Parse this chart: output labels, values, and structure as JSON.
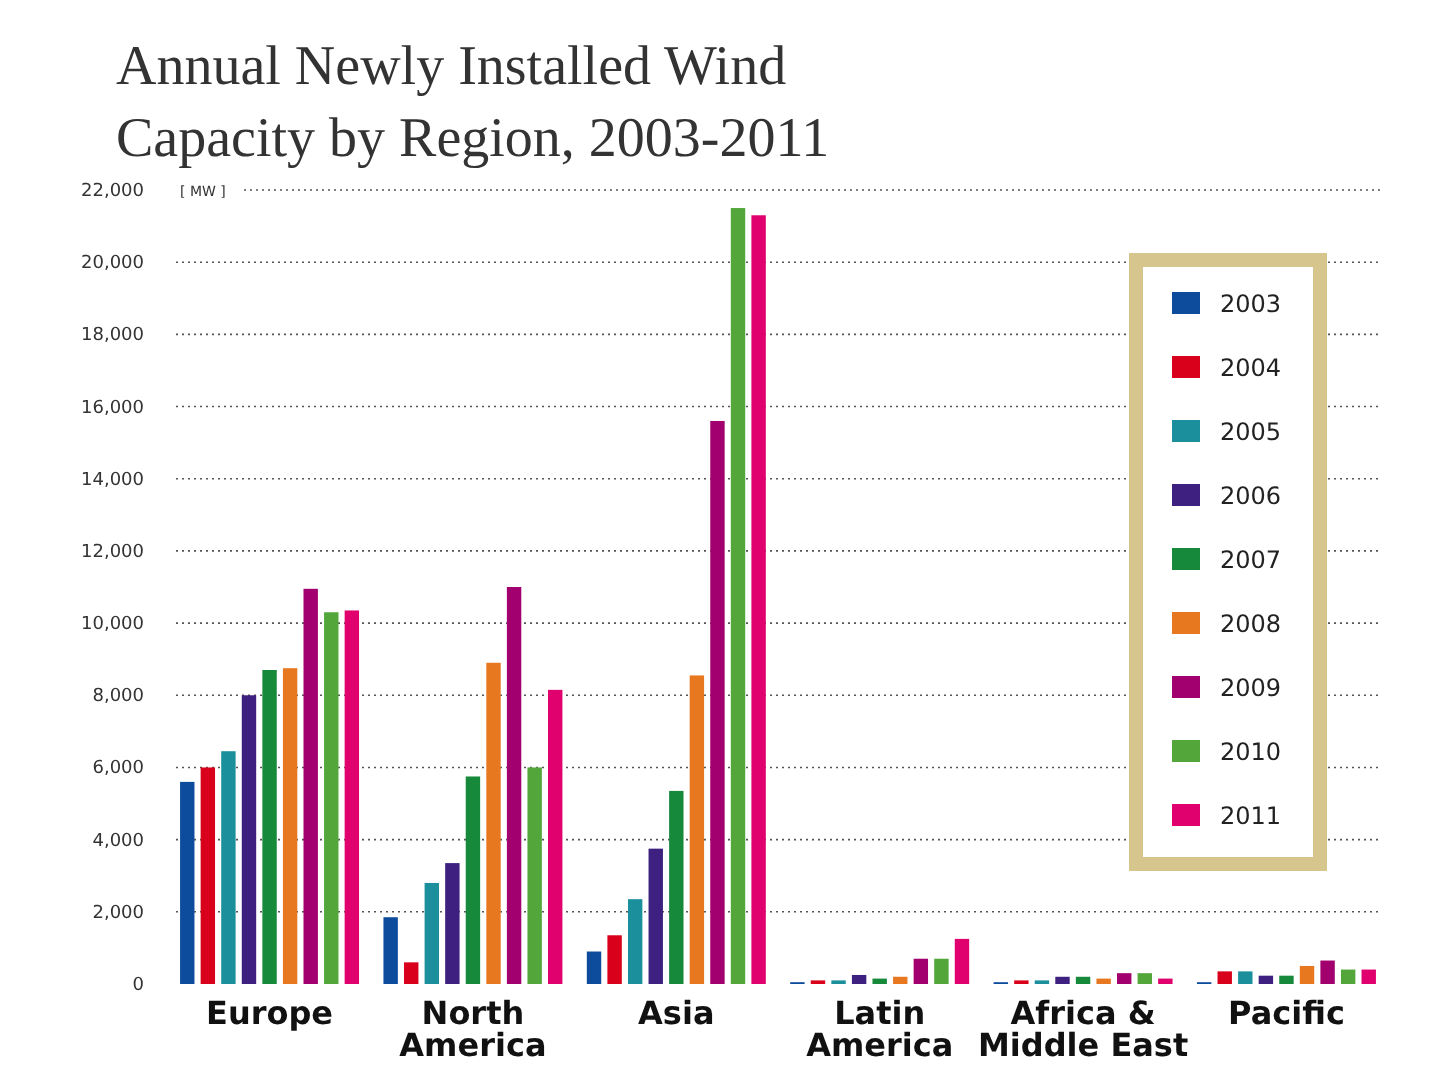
{
  "chart_data": {
    "type": "bar",
    "title": "Annual Newly Installed Wind Capacity by Region, 2003-2011",
    "ylabel": "[ MW ]",
    "categories": [
      "Europe",
      "North America",
      "Asia",
      "Latin America",
      "Africa & Middle East",
      "Pacific"
    ],
    "series": [
      {
        "name": "2003",
        "color": "#0d4c9c",
        "values": [
          5600,
          1850,
          900,
          50,
          50,
          50
        ]
      },
      {
        "name": "2004",
        "color": "#d9001b",
        "values": [
          6000,
          600,
          1350,
          100,
          100,
          350
        ]
      },
      {
        "name": "2005",
        "color": "#1b8f9c",
        "values": [
          6450,
          2800,
          2350,
          100,
          100,
          350
        ]
      },
      {
        "name": "2006",
        "color": "#3d2080",
        "values": [
          8000,
          3350,
          3750,
          250,
          200,
          230
        ]
      },
      {
        "name": "2007",
        "color": "#17893a",
        "values": [
          8700,
          5750,
          5350,
          150,
          200,
          230
        ]
      },
      {
        "name": "2008",
        "color": "#e87820",
        "values": [
          8750,
          8900,
          8550,
          200,
          150,
          500
        ]
      },
      {
        "name": "2009",
        "color": "#a2006e",
        "values": [
          10950,
          11000,
          15600,
          700,
          300,
          650
        ]
      },
      {
        "name": "2010",
        "color": "#52a63a",
        "values": [
          10300,
          6000,
          21500,
          700,
          300,
          400
        ]
      },
      {
        "name": "2011",
        "color": "#e0006e",
        "values": [
          10350,
          8150,
          21300,
          1250,
          150,
          400
        ]
      }
    ],
    "ylim": [
      0,
      22000
    ],
    "yticks": [
      {
        "value": 0,
        "label": "0"
      },
      {
        "value": 2000,
        "label": "2,000"
      },
      {
        "value": 4000,
        "label": "4,000"
      },
      {
        "value": 6000,
        "label": "6,000"
      },
      {
        "value": 8000,
        "label": "8,000"
      },
      {
        "value": 10000,
        "label": "10,000"
      },
      {
        "value": 12000,
        "label": "12,000"
      },
      {
        "value": 14000,
        "label": "14,000"
      },
      {
        "value": 16000,
        "label": "16,000"
      },
      {
        "value": 18000,
        "label": "18,000"
      },
      {
        "value": 20000,
        "label": "20,000"
      },
      {
        "value": 22000,
        "label": "22,000"
      }
    ],
    "grid": "y",
    "legend": "right"
  }
}
